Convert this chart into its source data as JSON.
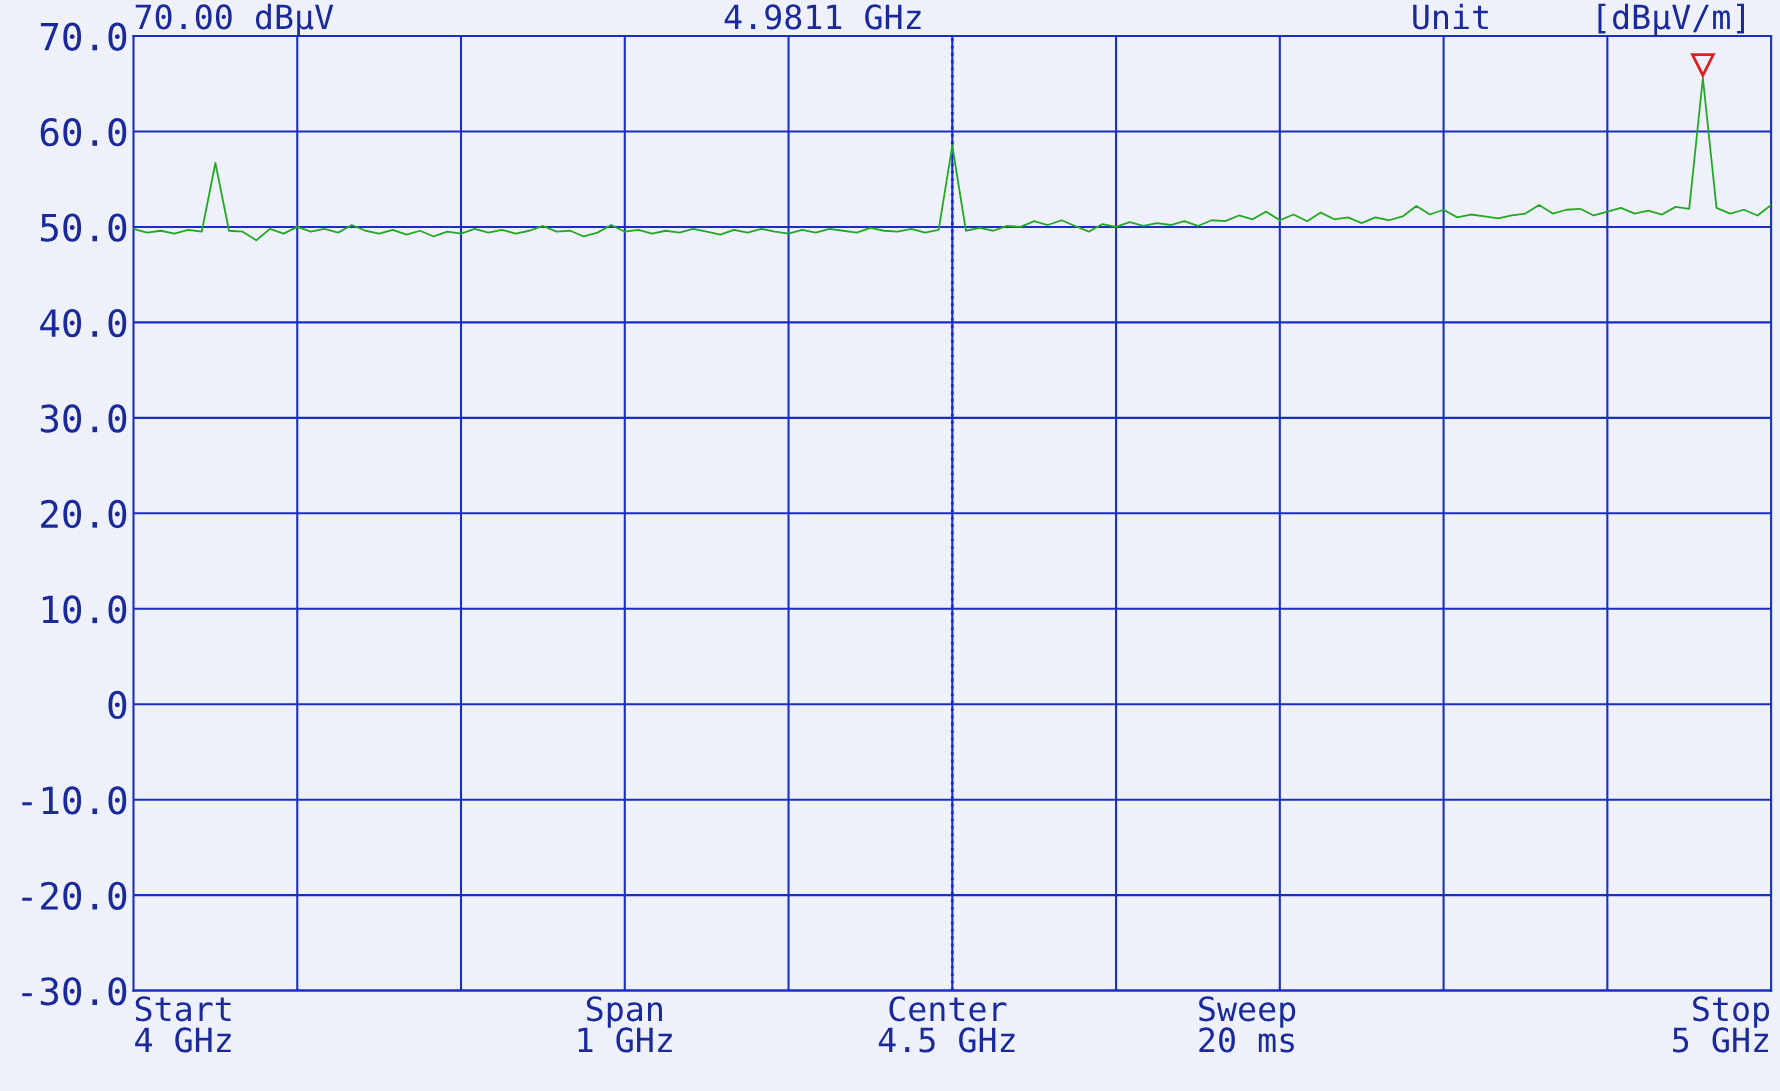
{
  "chart_data": {
    "type": "line",
    "ylim": [
      -30,
      70
    ],
    "yticks": [
      {
        "value": 70,
        "label": "70.0"
      },
      {
        "value": 60,
        "label": "60.0"
      },
      {
        "value": 50,
        "label": "50.0"
      },
      {
        "value": 40,
        "label": "40.0"
      },
      {
        "value": 30,
        "label": "30.0"
      },
      {
        "value": 20,
        "label": "20.0"
      },
      {
        "value": 10,
        "label": "10.0"
      },
      {
        "value": 0,
        "label": "0"
      },
      {
        "value": -10,
        "label": "-10.0"
      },
      {
        "value": -20,
        "label": "-20.0"
      },
      {
        "value": -30,
        "label": "-30.0"
      }
    ],
    "categories": [
      null,
      null,
      null,
      null,
      null,
      null,
      null,
      null,
      null,
      null,
      null,
      null,
      null,
      null,
      null,
      null,
      null,
      null,
      null,
      null,
      null,
      null,
      null,
      null,
      null,
      null,
      null,
      null,
      null,
      null,
      null,
      null,
      null,
      null,
      null,
      null,
      null,
      null,
      null,
      null,
      null,
      null,
      null,
      null,
      null,
      null,
      null,
      null,
      null,
      null,
      null,
      null,
      null,
      null,
      null,
      null,
      null,
      null,
      null,
      null,
      null,
      null,
      null,
      null,
      null,
      null,
      null,
      null,
      null,
      null,
      null,
      null,
      null,
      null,
      null,
      null,
      null,
      null,
      null,
      null,
      null,
      null,
      null,
      null,
      null,
      null,
      null,
      null,
      null,
      null,
      null,
      null,
      null,
      null,
      null,
      null,
      null,
      null,
      null,
      null,
      null,
      null,
      null,
      null,
      null,
      null,
      null,
      null,
      null,
      null,
      null,
      null,
      null,
      null,
      null,
      null,
      null,
      null,
      null,
      null,
      null
    ],
    "tick_labels": "y",
    "grid": true,
    "annotations": [
      "70.00 dBµV",
      "4.9811 GHz",
      "Unit",
      "[dBµV/m]",
      "Start\n4 GHz",
      "Span\n1 GHz",
      "Center\n4.5 GHz",
      "Sweep\n20 ms",
      "Stop\n5 GHz"
    ],
    "series": [
      {
        "color": "#22aa22",
        "values": [
          49.8,
          49.4,
          49.6,
          49.3,
          49.7,
          49.5,
          56.7,
          49.6,
          49.5,
          48.6,
          49.8,
          49.3,
          50.0,
          49.5,
          49.8,
          49.4,
          50.2,
          49.6,
          49.3,
          49.7,
          49.2,
          49.6,
          49.0,
          49.5,
          49.3,
          49.8,
          49.4,
          49.7,
          49.3,
          49.6,
          50.1,
          49.5,
          49.6,
          49.0,
          49.4,
          50.2,
          49.5,
          49.7,
          49.3,
          49.6,
          49.4,
          49.8,
          49.5,
          49.2,
          49.7,
          49.4,
          49.8,
          49.5,
          49.3,
          49.7,
          49.4,
          49.8,
          49.6,
          49.4,
          49.9,
          49.6,
          49.5,
          49.8,
          49.4,
          49.7,
          58.5,
          49.6,
          49.9,
          49.6,
          50.1,
          50.0,
          50.6,
          50.2,
          50.7,
          50.1,
          49.5,
          50.3,
          50.0,
          50.5,
          50.1,
          50.4,
          50.2,
          50.6,
          50.1,
          50.7,
          50.6,
          51.2,
          50.8,
          51.6,
          50.7,
          51.3,
          50.6,
          51.5,
          50.8,
          51.0,
          50.4,
          51.0,
          50.7,
          51.1,
          52.2,
          51.3,
          51.8,
          51.0,
          51.3,
          51.1,
          50.9,
          51.2,
          51.4,
          52.3,
          51.4,
          51.8,
          51.9,
          51.2,
          51.6,
          52.0,
          51.4,
          51.7,
          51.3,
          52.1,
          51.9,
          65.6,
          52.0,
          51.4,
          51.8,
          51.2,
          52.3
        ]
      }
    ]
  }
}
